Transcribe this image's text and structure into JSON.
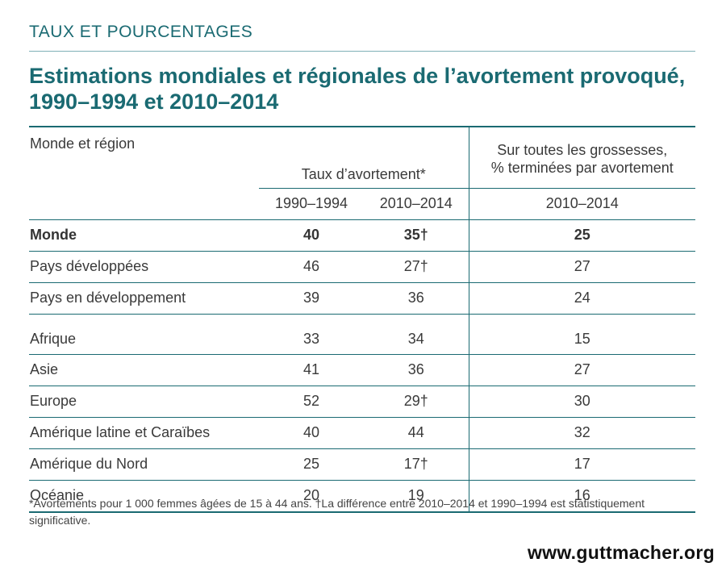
{
  "kicker": "TAUX ET POURCENTAGES",
  "title": "Estimations mondiales et régionales de l’avortement provoqué, 1990–1994 et 2010–2014",
  "colors": {
    "accent": "#1a6a72",
    "text": "#3a3a3a"
  },
  "chart_data": {
    "type": "table",
    "title": "Estimations mondiales et régionales de l’avortement provoqué, 1990–1994 et 2010–2014",
    "headers": {
      "region": "Monde et région",
      "rate_group": "Taux d’avortement*",
      "pct_group_line1": "Sur toutes les grossesses,",
      "pct_group_line2": "% terminées par avortement",
      "rate_years": [
        "1990–1994",
        "2010–2014"
      ],
      "pct_year": "2010–2014"
    },
    "rows": [
      {
        "region": "Monde",
        "rate_1990_1994": "40",
        "rate_2010_2014": "35†",
        "pct_2010_2014": "25"
      },
      {
        "region": "Pays développées",
        "rate_1990_1994": "46",
        "rate_2010_2014": "27†",
        "pct_2010_2014": "27"
      },
      {
        "region": "Pays en développement",
        "rate_1990_1994": "39",
        "rate_2010_2014": "36",
        "pct_2010_2014": "24"
      },
      {
        "region": "Afrique",
        "rate_1990_1994": "33",
        "rate_2010_2014": "34",
        "pct_2010_2014": "15"
      },
      {
        "region": "Asie",
        "rate_1990_1994": "41",
        "rate_2010_2014": "36",
        "pct_2010_2014": "27"
      },
      {
        "region": "Europe",
        "rate_1990_1994": "52",
        "rate_2010_2014": "29†",
        "pct_2010_2014": "30"
      },
      {
        "region": "Amérique latine et Caraïbes",
        "rate_1990_1994": "40",
        "rate_2010_2014": "44",
        "pct_2010_2014": "32"
      },
      {
        "region": "Amérique du Nord",
        "rate_1990_1994": "25",
        "rate_2010_2014": "17†",
        "pct_2010_2014": "17"
      },
      {
        "region": "Océanie",
        "rate_1990_1994": "20",
        "rate_2010_2014": "19",
        "pct_2010_2014": "16"
      }
    ]
  },
  "footnote": "*Avortements pour 1 000 femmes âgées de 15 à 44 ans. †La différence entre 2010–2014 et 1990–1994 est statistiquement significative.",
  "brand": "www.guttmacher.org"
}
